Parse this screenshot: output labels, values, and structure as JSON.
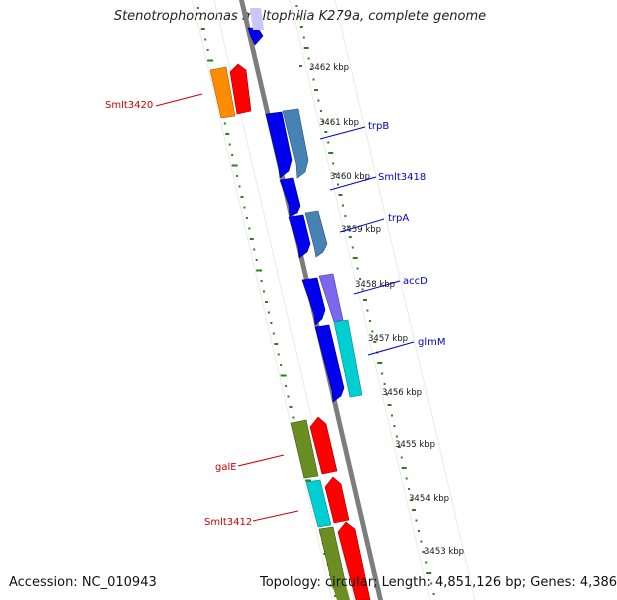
{
  "title": "Stenotrophomonas maltophilia K279a, complete genome",
  "footer": {
    "accession": "Accession: NC_010943",
    "summary": "Topology: circular; Length: 4,851,126 bp; Genes: 4,386"
  },
  "ticks": [
    "3462 kbp",
    "3461 kbp",
    "3460 kbp",
    "3459 kbp",
    "3458 kbp",
    "3457 kbp",
    "3456 kbp",
    "3455 kbp",
    "3454 kbp",
    "3453 kbp"
  ],
  "labels": {
    "smlt3420": "Smlt3420",
    "trpB": "trpB",
    "smlt3418": "Smlt3418",
    "trpA": "trpA",
    "accD": "accD",
    "glmM": "glmM",
    "galE": "galE",
    "smlt3412": "Smlt3412"
  },
  "colors": {
    "backbone": "#808080",
    "forward_label": "#0000cc",
    "reverse_label": "#cc0000",
    "gc_ticks": "#2e7d1e",
    "cds_blue": "#0000ee",
    "cds_steel": "#4682b4",
    "cds_purple": "#7b68ee",
    "cds_cyan": "#00ced1",
    "cds_red": "#ff0000",
    "cds_orange": "#ff8c00",
    "cds_olive": "#6b8e23"
  }
}
